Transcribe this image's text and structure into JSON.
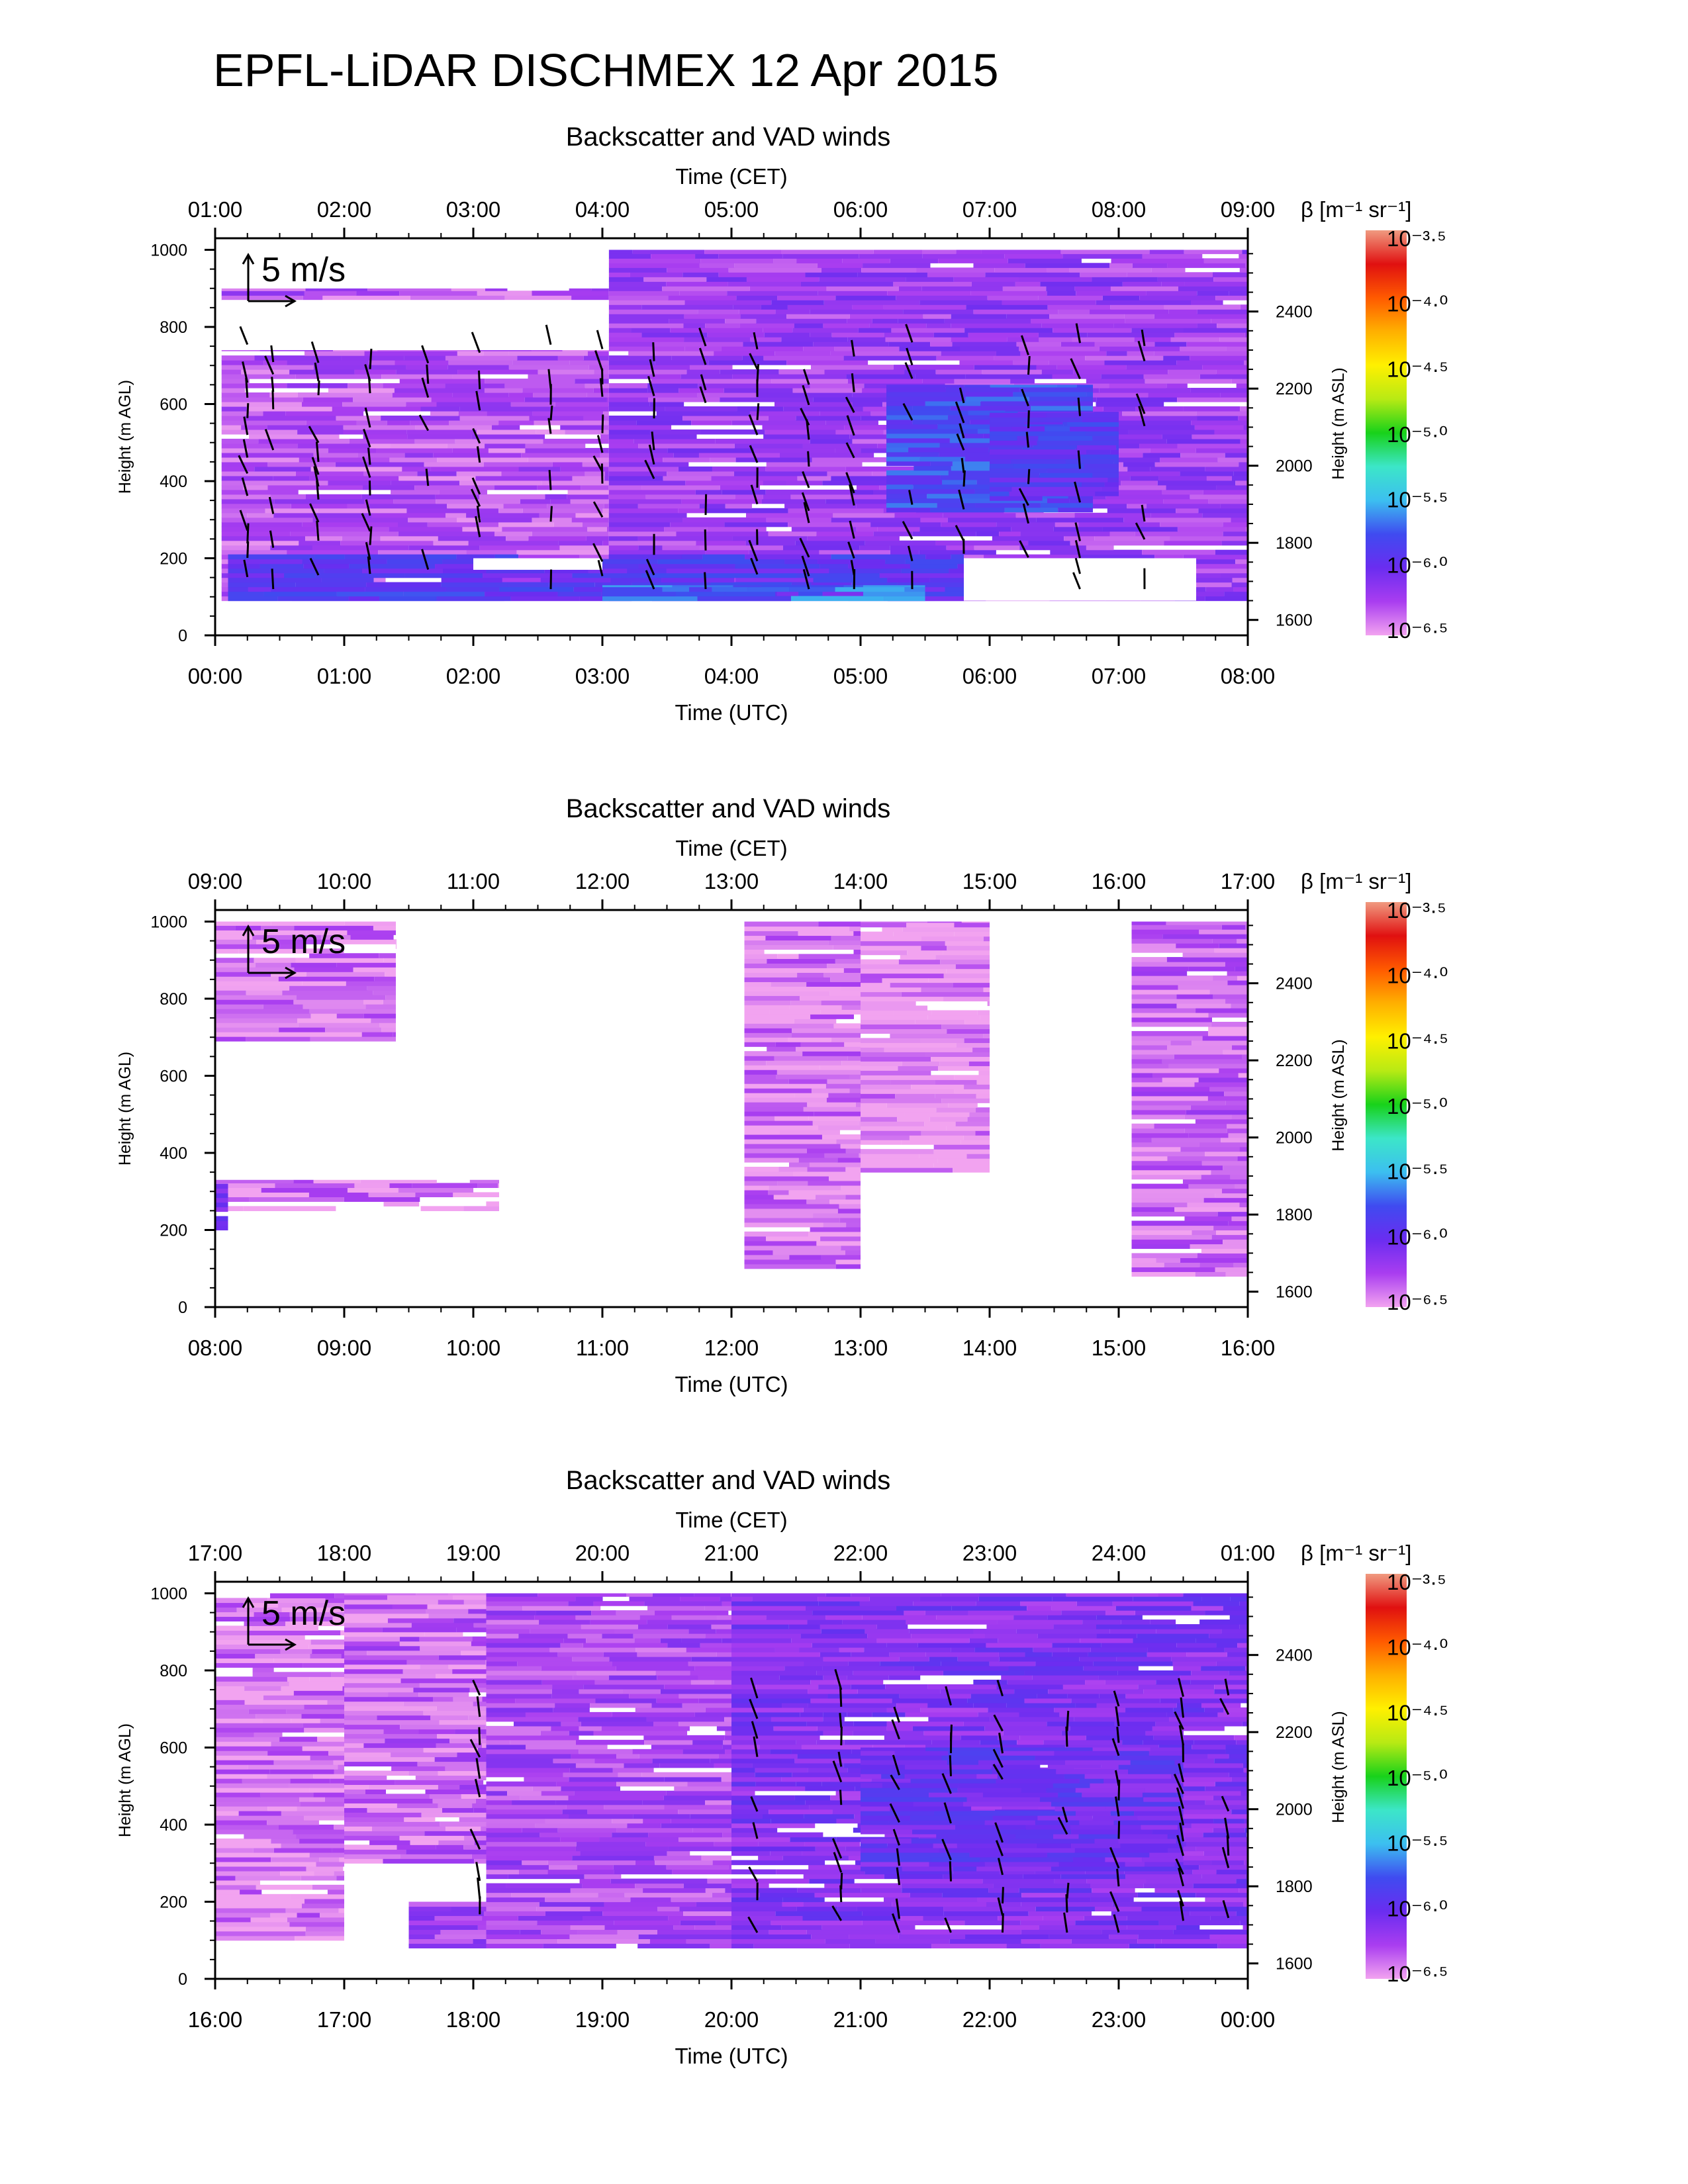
{
  "figure_title": "EPFL-LiDAR DISCHMEX 12 Apr 2015",
  "colors": {
    "colormap": [
      "#f2a3f0",
      "#a93df0",
      "#6a2df0",
      "#3f4bf0",
      "#3cbff0",
      "#3ce6c8",
      "#18d21a",
      "#b8ea14",
      "#fff000",
      "#ffb000",
      "#ff5a00",
      "#e01010",
      "#f09a80"
    ],
    "wind_arrow": "#000000",
    "background": "#ffffff"
  },
  "chart_data": [
    {
      "type": "heatmap",
      "title": "Backscatter and VAD winds",
      "top_axis_label": "Time (CET)",
      "top_ticks": [
        "01:00",
        "02:00",
        "03:00",
        "04:00",
        "05:00",
        "06:00",
        "07:00",
        "08:00",
        "09:00"
      ],
      "xlabel": "Time (UTC)",
      "bottom_ticks": [
        "00:00",
        "01:00",
        "02:00",
        "03:00",
        "04:00",
        "05:00",
        "06:00",
        "07:00",
        "08:00"
      ],
      "xlim_utc_hours": [
        0,
        8
      ],
      "ylabel": "Height (m AGL)",
      "ylim": [
        0,
        1030
      ],
      "yticks": [
        "0",
        "200",
        "400",
        "600",
        "800",
        "1000"
      ],
      "y2label": "Height (m ASL)",
      "y2ticks": [
        "1600",
        "1800",
        "2000",
        "2200",
        "2400"
      ],
      "y2_offset_m": 1560,
      "scale_label": "5 m/s",
      "colorbar_label": "β [m⁻¹ sr⁻¹]",
      "colorbar_ticks": [
        "10⁻³·⁵",
        "10⁻⁴·⁰",
        "10⁻⁴·⁵",
        "10⁻⁵·⁰",
        "10⁻⁵·⁵",
        "10⁻⁶·⁰",
        "10⁻⁶·⁵"
      ],
      "colorbar_range_log10": [
        -6.5,
        -3.5
      ],
      "backscatter_regions": [
        {
          "t": [
            0.05,
            3.05
          ],
          "h": [
            90,
            740
          ],
          "log_beta": -6.3
        },
        {
          "t": [
            0.05,
            3.05
          ],
          "h": [
            870,
            900
          ],
          "log_beta": -6.3
        },
        {
          "t": [
            3.05,
            8.0
          ],
          "h": [
            90,
            1000
          ],
          "log_beta": -6.2
        },
        {
          "t": [
            0.1,
            5.8
          ],
          "h": [
            90,
            210
          ],
          "log_beta": -5.9
        },
        {
          "t": [
            3.0,
            5.5
          ],
          "h": [
            90,
            130
          ],
          "log_beta": -5.7
        },
        {
          "t": [
            5.2,
            6.8
          ],
          "h": [
            320,
            650
          ],
          "log_beta": -5.8
        },
        {
          "t": [
            6.0,
            7.0
          ],
          "h": [
            350,
            580
          ],
          "log_beta": -5.9
        }
      ],
      "gaps": [
        {
          "t": [
            0.05,
            3.05
          ],
          "h": [
            740,
            870
          ]
        },
        {
          "t": [
            0.05,
            3.05
          ],
          "h": [
            900,
            1000
          ]
        },
        {
          "t": [
            5.8,
            7.6
          ],
          "h": [
            90,
            200
          ]
        },
        {
          "t": [
            2.0,
            3.0
          ],
          "h": [
            170,
            200
          ]
        }
      ],
      "wind_profiles_utc_hours": [
        0.25,
        0.45,
        0.8,
        1.2,
        1.65,
        2.05,
        2.6,
        3.0,
        3.4,
        3.8,
        4.2,
        4.6,
        4.95,
        5.4,
        5.8,
        6.3,
        6.7,
        7.2
      ]
    },
    {
      "type": "heatmap",
      "title": "Backscatter and VAD winds",
      "top_axis_label": "Time (CET)",
      "top_ticks": [
        "09:00",
        "10:00",
        "11:00",
        "12:00",
        "13:00",
        "14:00",
        "15:00",
        "16:00",
        "17:00"
      ],
      "xlabel": "Time (UTC)",
      "bottom_ticks": [
        "08:00",
        "09:00",
        "10:00",
        "11:00",
        "12:00",
        "13:00",
        "14:00",
        "15:00",
        "16:00"
      ],
      "xlim_utc_hours": [
        8,
        16
      ],
      "ylabel": "Height (m AGL)",
      "ylim": [
        0,
        1030
      ],
      "yticks": [
        "0",
        "200",
        "400",
        "600",
        "800",
        "1000"
      ],
      "y2label": "Height (m ASL)",
      "y2ticks": [
        "1600",
        "1800",
        "2000",
        "2200",
        "2400"
      ],
      "y2_offset_m": 1560,
      "scale_label": "5 m/s",
      "colorbar_label": "β [m⁻¹ sr⁻¹]",
      "colorbar_ticks": [
        "10⁻³·⁵",
        "10⁻⁴·⁰",
        "10⁻⁴·⁵",
        "10⁻⁵·⁰",
        "10⁻⁵·⁵",
        "10⁻⁶·⁰",
        "10⁻⁶·⁵"
      ],
      "colorbar_range_log10": [
        -6.5,
        -3.5
      ],
      "backscatter_regions": [
        {
          "t": [
            8.0,
            9.4
          ],
          "h": [
            690,
            1000
          ],
          "log_beta": -6.4
        },
        {
          "t": [
            8.0,
            10.2
          ],
          "h": [
            250,
            330
          ],
          "log_beta": -6.4
        },
        {
          "t": [
            8.0,
            8.1
          ],
          "h": [
            200,
            320
          ],
          "log_beta": -6.1
        },
        {
          "t": [
            12.1,
            13.0
          ],
          "h": [
            100,
            1000
          ],
          "log_beta": -6.4
        },
        {
          "t": [
            13.0,
            14.0
          ],
          "h": [
            350,
            1000
          ],
          "log_beta": -6.45
        },
        {
          "t": [
            15.1,
            16.0
          ],
          "h": [
            80,
            1000
          ],
          "log_beta": -6.35
        }
      ],
      "wind_profiles_utc_hours": []
    },
    {
      "type": "heatmap",
      "title": "Backscatter and VAD winds",
      "top_axis_label": "Time (CET)",
      "top_ticks": [
        "17:00",
        "18:00",
        "19:00",
        "20:00",
        "21:00",
        "22:00",
        "23:00",
        "24:00",
        "01:00"
      ],
      "xlabel": "Time (UTC)",
      "bottom_ticks": [
        "16:00",
        "17:00",
        "18:00",
        "19:00",
        "20:00",
        "21:00",
        "22:00",
        "23:00",
        "00:00"
      ],
      "xlim_utc_hours": [
        16,
        24
      ],
      "ylabel": "Height (m AGL)",
      "ylim": [
        0,
        1030
      ],
      "yticks": [
        "0",
        "200",
        "400",
        "600",
        "800",
        "1000"
      ],
      "y2label": "Height (m ASL)",
      "y2ticks": [
        "1600",
        "1800",
        "2000",
        "2200",
        "2400"
      ],
      "y2_offset_m": 1560,
      "scale_label": "5 m/s",
      "colorbar_label": "β [m⁻¹ sr⁻¹]",
      "colorbar_ticks": [
        "10⁻³·⁵",
        "10⁻⁴·⁰",
        "10⁻⁴·⁵",
        "10⁻⁵·⁰",
        "10⁻⁵·⁵",
        "10⁻⁶·⁰",
        "10⁻⁶·⁵"
      ],
      "colorbar_range_log10": [
        -6.5,
        -3.5
      ],
      "backscatter_regions": [
        {
          "t": [
            16.0,
            17.0
          ],
          "h": [
            100,
            1000
          ],
          "log_beta": -6.4
        },
        {
          "t": [
            17.0,
            18.1
          ],
          "h": [
            300,
            1000
          ],
          "log_beta": -6.35
        },
        {
          "t": [
            17.5,
            18.2
          ],
          "h": [
            80,
            200
          ],
          "log_beta": -6.2
        },
        {
          "t": [
            18.1,
            20.0
          ],
          "h": [
            80,
            1000
          ],
          "log_beta": -6.25
        },
        {
          "t": [
            20.0,
            24.0
          ],
          "h": [
            80,
            1000
          ],
          "log_beta": -6.1
        },
        {
          "t": [
            21.0,
            23.5
          ],
          "h": [
            280,
            600
          ],
          "log_beta": -6.0
        }
      ],
      "wind_profiles_utc_hours": [
        18.05,
        20.2,
        20.85,
        21.3,
        21.7,
        22.1,
        22.6,
        23.0,
        23.5,
        23.85
      ]
    }
  ]
}
